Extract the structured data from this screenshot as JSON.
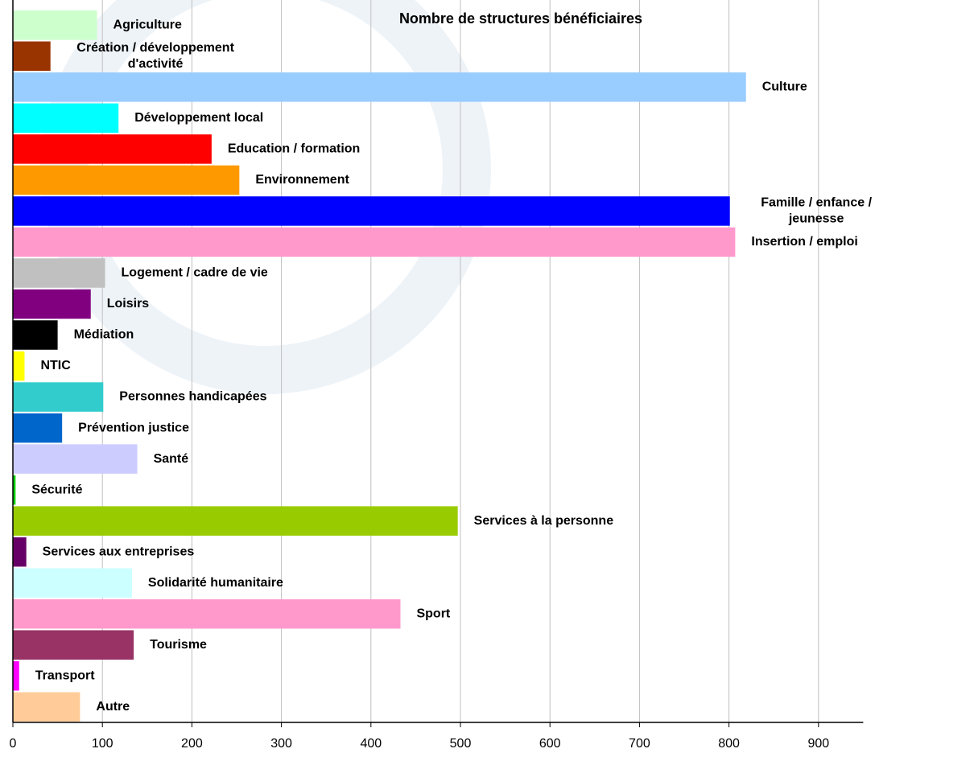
{
  "chart_data": {
    "type": "barh",
    "title": "Nombre de structures bénéficiaires",
    "categories": [
      "Agriculture",
      "Création / développement d'activité",
      "Culture",
      "Développement local",
      "Education / formation",
      "Environnement",
      "Famille / enfance / jeunesse",
      "Insertion / emploi",
      "Logement / cadre de vie",
      "Loisirs",
      "Médiation",
      "NTIC",
      "Personnes handicapées",
      "Prévention justice",
      "Santé",
      "Sécurité",
      "Services à la personne",
      "Services aux entreprises",
      "Solidarité humanitaire",
      "Sport",
      "Tourisme",
      "Transport",
      "Autre"
    ],
    "values": [
      94,
      42,
      819,
      118,
      222,
      253,
      801,
      807,
      103,
      87,
      50,
      13,
      101,
      55,
      139,
      3,
      497,
      15,
      133,
      433,
      135,
      7,
      75
    ],
    "colors": [
      "#ccffcc",
      "#993300",
      "#99ccff",
      "#00ffff",
      "#ff0000",
      "#ff9900",
      "#0000ff",
      "#ff99cc",
      "#c0c0c0",
      "#800080",
      "#000000",
      "#ffff00",
      "#33cccc",
      "#0066cc",
      "#ccccff",
      "#00cc00",
      "#99cc00",
      "#660066",
      "#ccffff",
      "#ff99cc",
      "#993366",
      "#ff00ff",
      "#ffcc99"
    ],
    "xlim": [
      0,
      950
    ],
    "xticks": [
      0,
      100,
      200,
      300,
      400,
      500,
      600,
      700,
      800,
      900
    ],
    "grid": true
  }
}
